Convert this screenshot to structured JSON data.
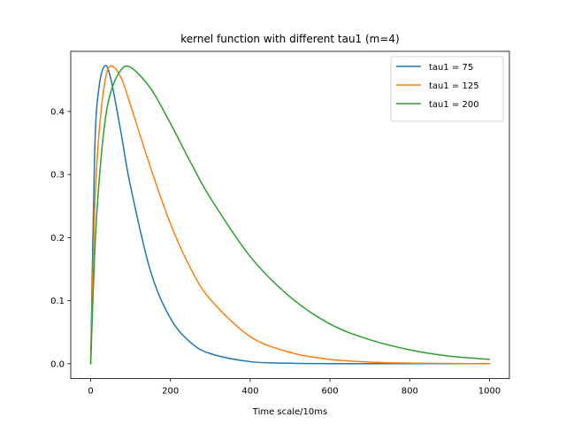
{
  "chart_data": {
    "type": "line",
    "title": "kernel function with different tau1 (m=4)",
    "xlabel": "Time scale/10ms",
    "ylabel": "",
    "xlim": [
      -50,
      1050
    ],
    "ylim": [
      -0.0236,
      0.4953
    ],
    "x_ticks": [
      0,
      200,
      400,
      600,
      800,
      1000
    ],
    "x_tick_labels": [
      "0",
      "200",
      "400",
      "600",
      "800",
      "1000"
    ],
    "y_ticks": [
      0.0,
      0.1,
      0.2,
      0.3,
      0.4
    ],
    "y_tick_labels": [
      "0.0",
      "0.1",
      "0.2",
      "0.3",
      "0.4"
    ],
    "grid": false,
    "legend_position": "top-right",
    "x": [
      0,
      10,
      20,
      35,
      50,
      75,
      100,
      150,
      200,
      250,
      300,
      400,
      500,
      600,
      700,
      800,
      900,
      1000
    ],
    "series": [
      {
        "name": "tau1 = 75",
        "color": "#1f77b4",
        "values": [
          0.0,
          0.335,
          0.434,
          0.472,
          0.453,
          0.37,
          0.281,
          0.147,
          0.072,
          0.034,
          0.016,
          0.0033,
          0.0007,
          0.0001,
          0.0,
          0.0,
          0.0,
          0.0
        ]
      },
      {
        "name": "tau1 = 125",
        "color": "#ff7f0e",
        "values": [
          0.0,
          0.245,
          0.358,
          0.445,
          0.472,
          0.455,
          0.41,
          0.311,
          0.222,
          0.152,
          0.102,
          0.043,
          0.018,
          0.0068,
          0.0026,
          0.001,
          0.0004,
          0.0001
        ]
      },
      {
        "name": "tau1 = 200",
        "color": "#2ca02c",
        "values": [
          0.0,
          0.175,
          0.28,
          0.38,
          0.43,
          0.465,
          0.47,
          0.437,
          0.381,
          0.32,
          0.263,
          0.17,
          0.106,
          0.063,
          0.038,
          0.022,
          0.012,
          0.007
        ]
      }
    ]
  }
}
